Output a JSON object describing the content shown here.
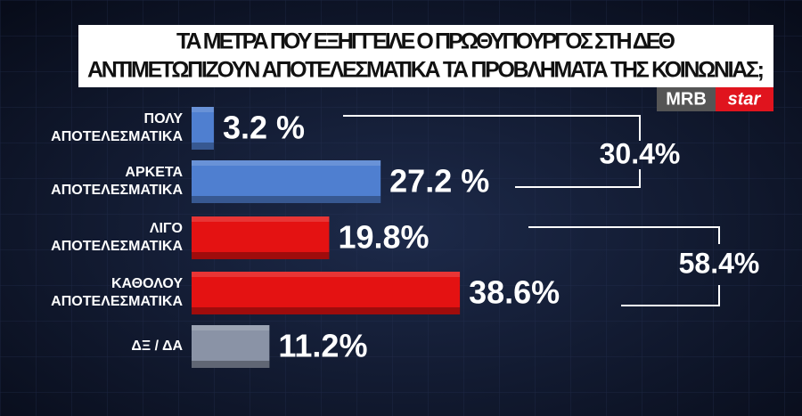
{
  "chart_data": {
    "type": "bar",
    "orientation": "horizontal",
    "title": [
      "ΤΑ ΜΕΤΡΑ ΠΟΥ ΕΞΗΓΓΕΙΛΕ Ο ΠΡΩΘΥΠΟΥΡΓΟΣ ΣΤΗ ΔΕΘ",
      "ΑΝΤΙΜΕΤΩΠΙΖΟΥΝ ΑΠΟΤΕΛΕΣΜΑΤΙΚΑ ΤΑ ΠΡΟΒΛΗΜΑΤΑ ΤΗΣ ΚΟΙΝΩΝΙΑΣ;"
    ],
    "categories": [
      "ΠΟΛΥ\nΑΠΟΤΕΛΕΣΜΑΤΙΚΑ",
      "ΑΡΚΕΤΑ\nΑΠΟΤΕΛΕΣΜΑΤΙΚΑ",
      "ΛΙΓΟ\nΑΠΟΤΕΛΕΣΜΑΤΙΚΑ",
      "ΚΑΘΟΛΟΥ\nΑΠΟΤΕΛΕΣΜΑΤΙΚΑ",
      "ΔΞ / ΔΑ"
    ],
    "values": [
      3.2,
      27.2,
      19.8,
      38.6,
      11.2
    ],
    "value_labels": [
      "3.2 %",
      "27.2 %",
      "19.8%",
      "38.6%",
      "11.2%"
    ],
    "colors": [
      "#4f7fd0",
      "#4f7fd0",
      "#e41212",
      "#e41212",
      "#8a93a6"
    ],
    "group_totals": [
      "30.4%",
      "58.4%"
    ],
    "logo": [
      "MRB",
      "star"
    ]
  }
}
